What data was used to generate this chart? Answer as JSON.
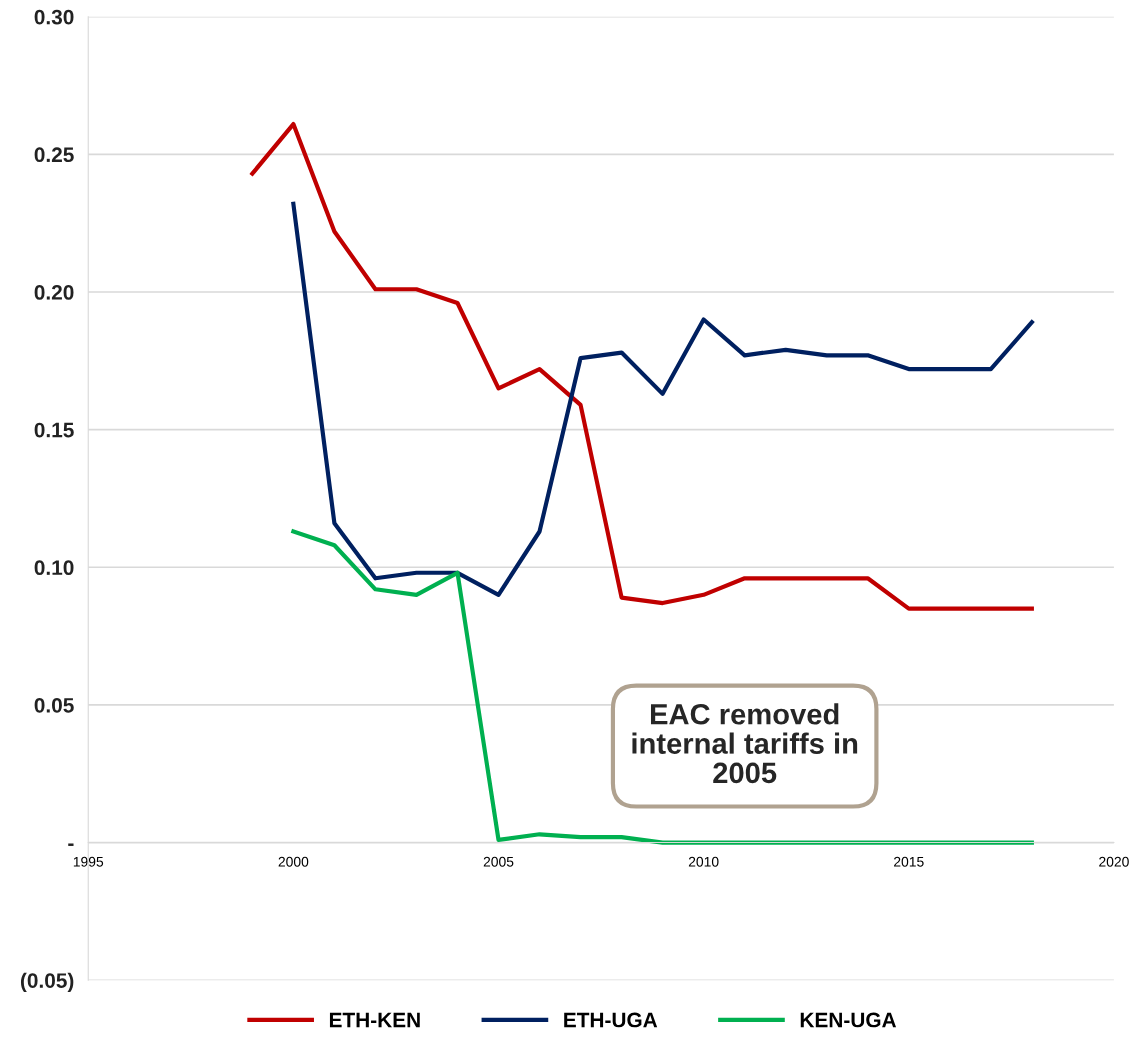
{
  "chart_data": {
    "type": "line",
    "x": [
      1999,
      2000,
      2001,
      2002,
      2003,
      2004,
      2005,
      2006,
      2007,
      2008,
      2009,
      2010,
      2011,
      2012,
      2013,
      2014,
      2015,
      2016,
      2017,
      2018
    ],
    "series": [
      {
        "name": "ETH-KEN",
        "color": "#c00000",
        "values": [
          0.243,
          0.261,
          0.222,
          0.201,
          0.201,
          0.196,
          0.165,
          0.172,
          0.159,
          0.089,
          0.087,
          0.09,
          0.096,
          0.096,
          0.096,
          0.096,
          0.085,
          0.085,
          0.085,
          0.085
        ]
      },
      {
        "name": "ETH-UGA",
        "color": "#002060",
        "values": [
          null,
          0.232,
          0.116,
          0.096,
          0.098,
          0.098,
          0.09,
          0.113,
          0.176,
          0.178,
          0.163,
          0.19,
          0.177,
          0.179,
          0.177,
          0.177,
          0.172,
          0.172,
          0.172,
          0.189
        ]
      },
      {
        "name": "KEN-UGA",
        "color": "#00b050",
        "values": [
          null,
          0.113,
          0.108,
          0.092,
          0.09,
          0.098,
          0.001,
          0.003,
          0.002,
          0.002,
          0.0,
          0.0,
          0.0,
          0.0,
          0.0,
          0.0,
          0.0,
          0.0,
          0.0,
          0.0
        ]
      }
    ],
    "xlim": [
      1995,
      2020
    ],
    "xticks": [
      1995,
      2000,
      2005,
      2010,
      2015,
      2020
    ],
    "ylim": [
      -0.05,
      0.3
    ],
    "yticks": [
      {
        "value": -0.05,
        "label": "(0.05)"
      },
      {
        "value": 0,
        "label": "-"
      },
      {
        "value": 0.05,
        "label": "0.05"
      },
      {
        "value": 0.1,
        "label": "0.10"
      },
      {
        "value": 0.15,
        "label": "0.15"
      },
      {
        "value": 0.2,
        "label": "0.20"
      },
      {
        "value": 0.25,
        "label": "0.25"
      },
      {
        "value": 0.3,
        "label": "0.30"
      }
    ],
    "grid": "y",
    "legend": "bottom",
    "marker": "none",
    "line_style": "solid",
    "annotations": [
      "EAC removed\ninternal tariffs in\n2005"
    ]
  }
}
